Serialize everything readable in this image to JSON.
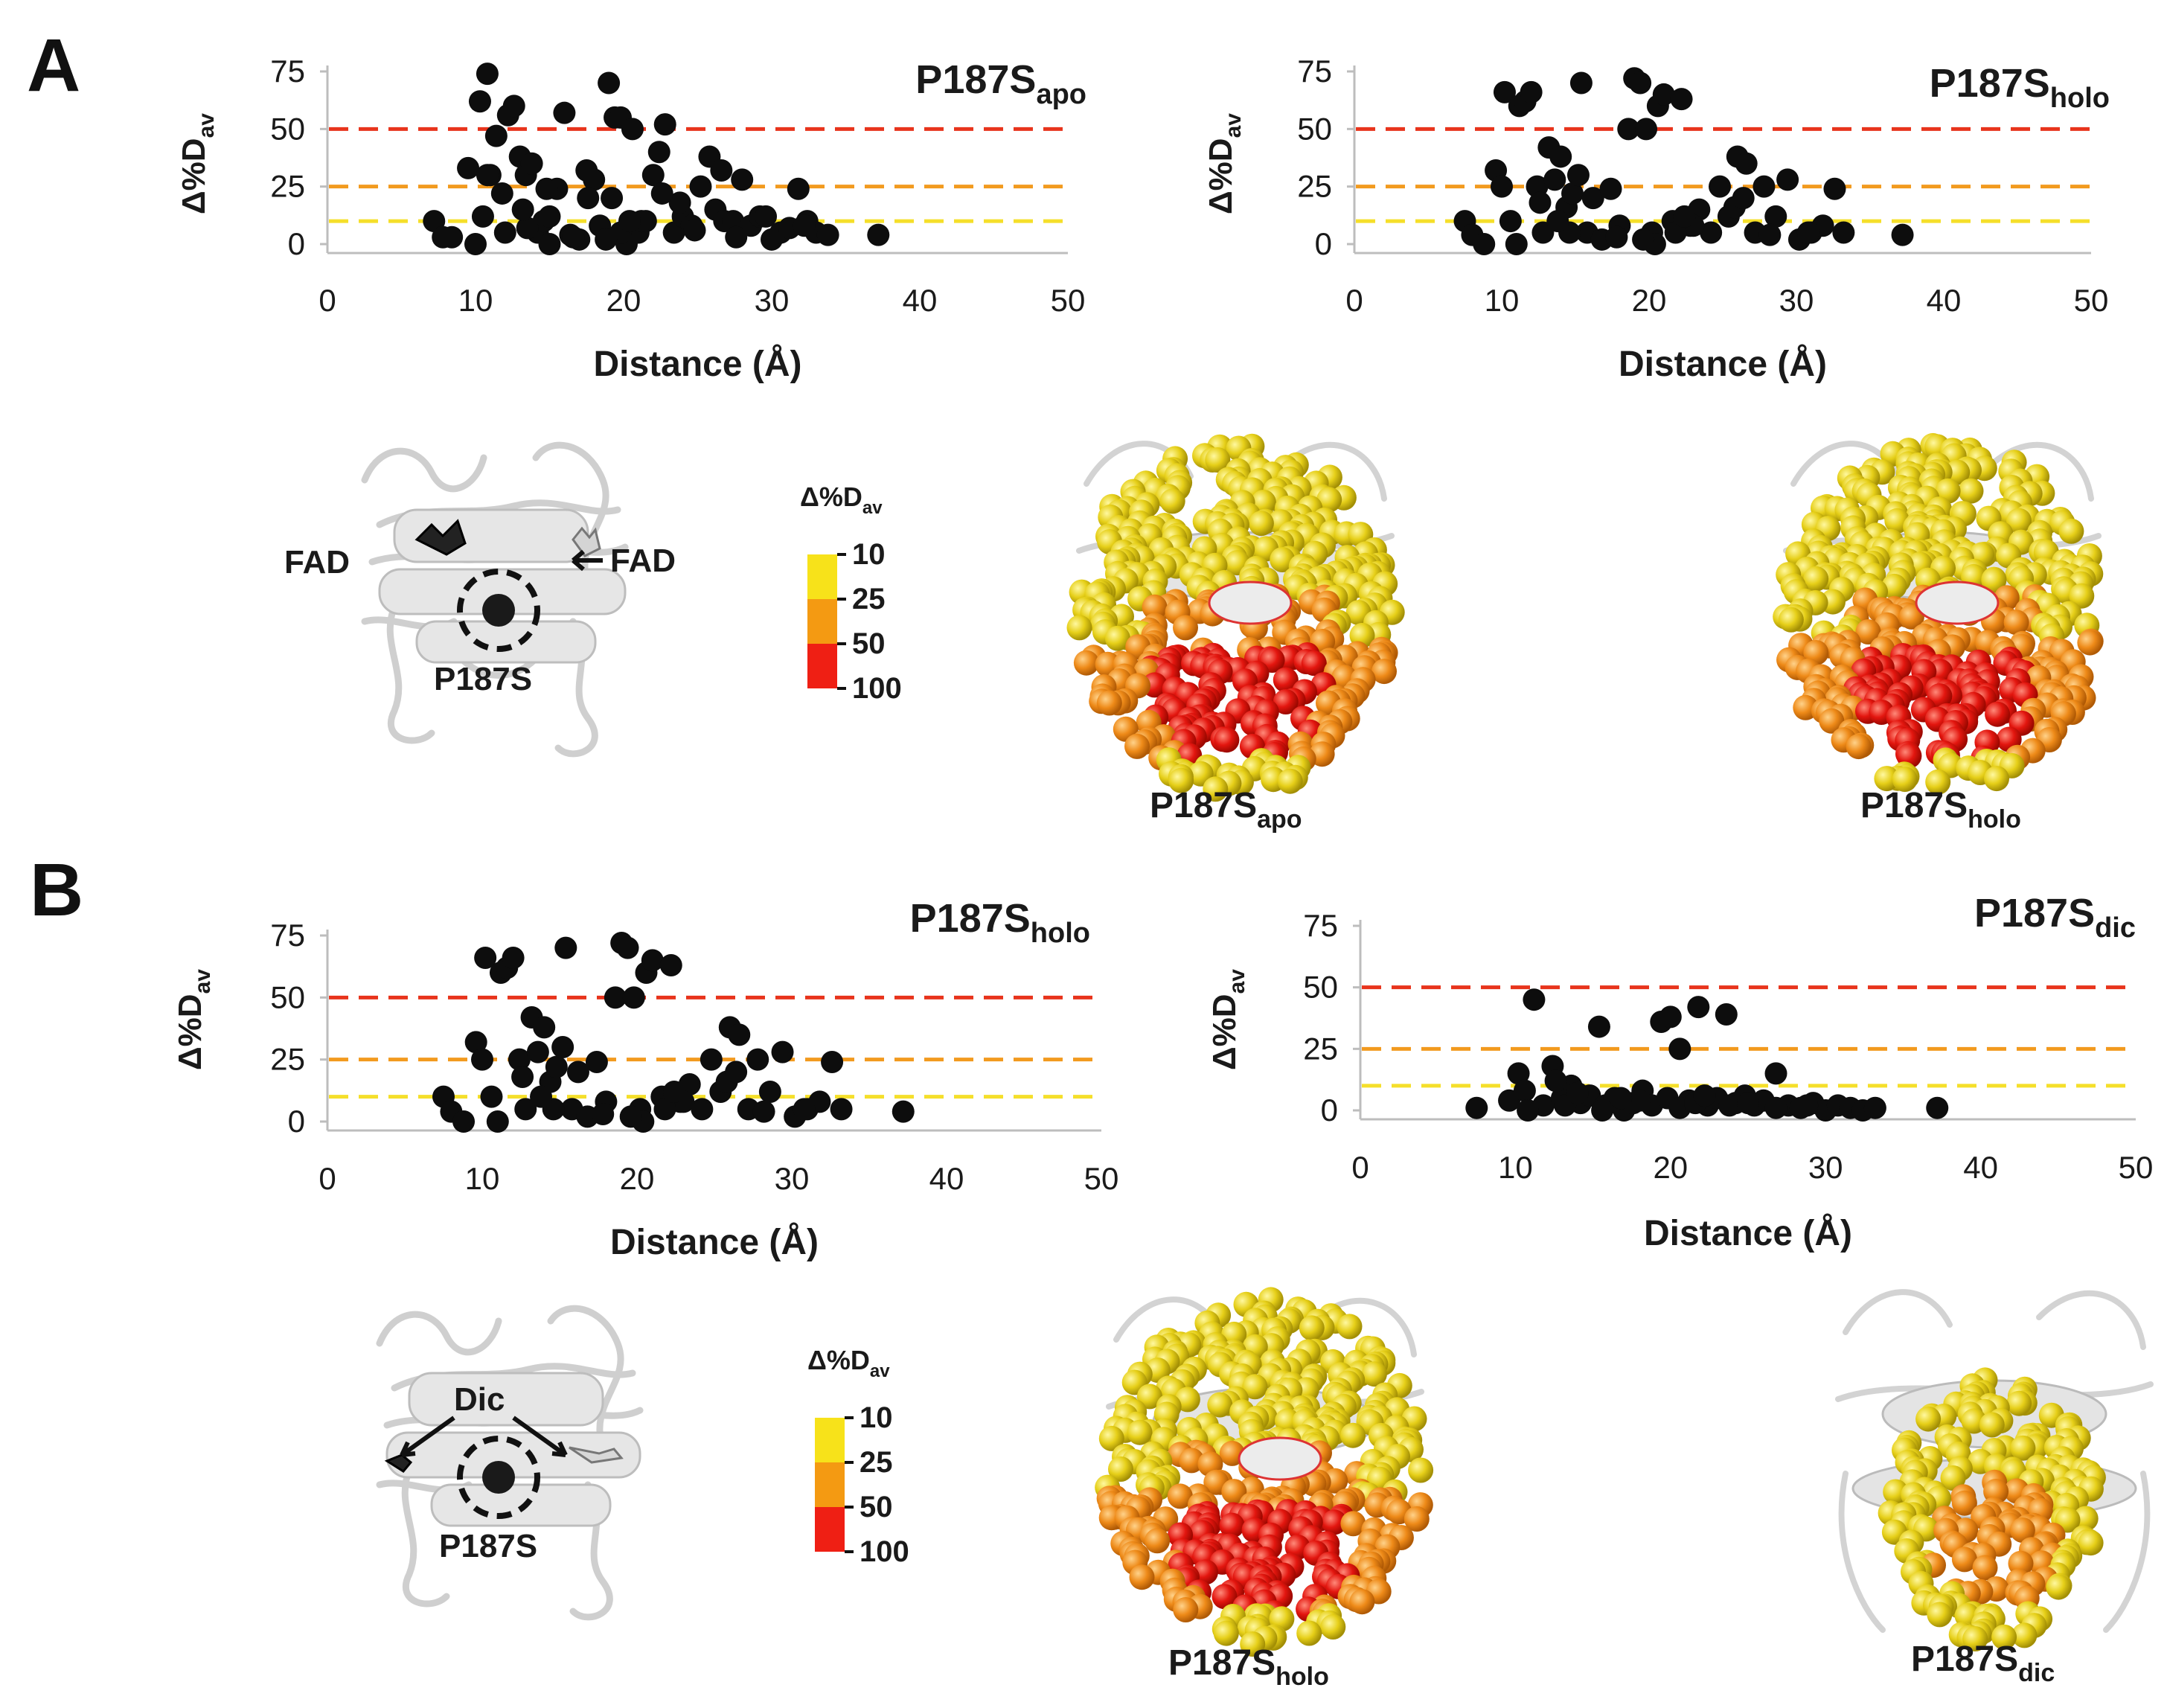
{
  "panels": [
    {
      "letter": "A"
    },
    {
      "letter": "B"
    }
  ],
  "chart_data": [
    {
      "id": "A1",
      "type": "scatter",
      "title_main": "P187S",
      "title_sub": "apo",
      "xlabel": "Distance (Å)",
      "ylabel_main": "Δ%D",
      "ylabel_sub": "av",
      "xlim": [
        0,
        50
      ],
      "ylim": [
        0,
        75
      ],
      "x_ticks": [
        0,
        10,
        20,
        30,
        40,
        50
      ],
      "y_ticks": [
        0,
        25,
        50,
        75
      ],
      "thresholds": [
        {
          "value": 50,
          "color": "#e8341c"
        },
        {
          "value": 25,
          "color": "#f29a1e"
        },
        {
          "value": 10,
          "color": "#f5df2a"
        }
      ],
      "x": [
        7.2,
        7.8,
        8.4,
        9.5,
        10.0,
        10.3,
        10.8,
        11.0,
        11.8,
        12.2,
        12.6,
        13.0,
        13.4,
        13.8,
        14.2,
        14.6,
        15.0,
        15.5,
        16.0,
        16.4,
        17.0,
        17.5,
        18.0,
        18.4,
        19.0,
        19.4,
        19.8,
        20.2,
        20.6,
        21.0,
        21.5,
        22.0,
        22.4,
        22.8,
        23.4,
        24.0,
        24.6,
        25.2,
        25.8,
        26.2,
        26.8,
        27.4,
        28.0,
        28.6,
        29.2,
        30.0,
        30.6,
        31.2,
        31.8,
        32.4,
        33.0,
        33.8,
        37.2,
        10.5,
        12.0,
        13.5,
        15.0,
        17.6,
        19.8,
        21.2,
        23.8,
        26.6,
        29.6,
        32.2,
        11.4,
        14.8,
        16.6,
        18.8,
        20.4,
        24.8,
        27.6,
        22.6,
        10.8,
        13.2,
        19.2
      ],
      "y": [
        10,
        3,
        3,
        33,
        0,
        62,
        74,
        30,
        22,
        56,
        60,
        38,
        30,
        35,
        5,
        10,
        12,
        24,
        57,
        4,
        2,
        32,
        28,
        8,
        70,
        55,
        55,
        0,
        50,
        5,
        10,
        30,
        40,
        52,
        5,
        12,
        8,
        25,
        38,
        15,
        10,
        10,
        28,
        8,
        12,
        2,
        5,
        7,
        24,
        10,
        5,
        4,
        4,
        12,
        5,
        7,
        0,
        20,
        5,
        10,
        18,
        32,
        12,
        8,
        47,
        24,
        3,
        2,
        10,
        6,
        3,
        22,
        30,
        15,
        20
      ]
    },
    {
      "id": "A2",
      "type": "scatter",
      "title_main": "P187S",
      "title_sub": "holo",
      "xlabel": "Distance (Å)",
      "ylabel_main": "Δ%D",
      "ylabel_sub": "av",
      "xlim": [
        0,
        50
      ],
      "ylim": [
        0,
        75
      ],
      "x_ticks": [
        0,
        10,
        20,
        30,
        40,
        50
      ],
      "y_ticks": [
        0,
        25,
        50,
        75
      ],
      "thresholds": [
        {
          "value": 50,
          "color": "#e8341c"
        },
        {
          "value": 25,
          "color": "#f29a1e"
        },
        {
          "value": 10,
          "color": "#f5df2a"
        }
      ],
      "x": [
        7.5,
        8.0,
        8.8,
        9.6,
        10.2,
        10.6,
        11.2,
        11.6,
        12.0,
        12.4,
        12.8,
        13.2,
        13.6,
        14.0,
        14.4,
        14.8,
        15.4,
        15.8,
        16.2,
        16.8,
        17.4,
        18.0,
        18.6,
        19.0,
        19.4,
        19.8,
        20.2,
        20.6,
        21.0,
        21.6,
        22.2,
        22.8,
        23.4,
        24.2,
        24.8,
        25.4,
        26.0,
        26.6,
        27.2,
        27.8,
        28.6,
        29.4,
        30.2,
        31.0,
        31.8,
        32.6,
        33.2,
        37.2,
        10.0,
        12.6,
        14.6,
        17.8,
        20.4,
        23.0,
        25.8,
        28.2,
        30.8,
        13.8,
        19.6,
        21.8,
        15.2,
        26.4,
        11.0,
        22.4
      ],
      "y": [
        10,
        4,
        0,
        32,
        66,
        10,
        60,
        62,
        66,
        25,
        5,
        42,
        28,
        38,
        16,
        22,
        70,
        5,
        20,
        2,
        24,
        8,
        50,
        72,
        70,
        50,
        5,
        60,
        65,
        10,
        63,
        8,
        15,
        5,
        25,
        12,
        38,
        35,
        5,
        25,
        12,
        28,
        2,
        5,
        8,
        24,
        5,
        4,
        25,
        18,
        5,
        3,
        0,
        8,
        16,
        4,
        5,
        10,
        2,
        5,
        30,
        20,
        0,
        12
      ]
    },
    {
      "id": "B1",
      "type": "scatter",
      "title_main": "P187S",
      "title_sub": "holo",
      "xlabel": "Distance (Å)",
      "ylabel_main": "Δ%D",
      "ylabel_sub": "av",
      "xlim": [
        0,
        50
      ],
      "ylim": [
        0,
        75
      ],
      "x_ticks": [
        0,
        10,
        20,
        30,
        40,
        50
      ],
      "y_ticks": [
        0,
        25,
        50,
        75
      ],
      "thresholds": [
        {
          "value": 50,
          "color": "#e8341c"
        },
        {
          "value": 25,
          "color": "#f29a1e"
        },
        {
          "value": 10,
          "color": "#f5df2a"
        }
      ],
      "x": [
        7.5,
        8.0,
        8.8,
        9.6,
        10.2,
        10.6,
        11.2,
        11.6,
        12.0,
        12.4,
        12.8,
        13.2,
        13.6,
        14.0,
        14.4,
        14.8,
        15.4,
        15.8,
        16.2,
        16.8,
        17.4,
        18.0,
        18.6,
        19.0,
        19.4,
        19.8,
        20.2,
        20.6,
        21.0,
        21.6,
        22.2,
        22.8,
        23.4,
        24.2,
        24.8,
        25.4,
        26.0,
        26.6,
        27.2,
        27.8,
        28.6,
        29.4,
        30.2,
        31.0,
        31.8,
        32.6,
        33.2,
        37.2,
        10.0,
        12.6,
        14.6,
        17.8,
        20.4,
        23.0,
        25.8,
        28.2,
        30.8,
        13.8,
        19.6,
        21.8,
        15.2,
        26.4,
        11.0,
        22.4
      ],
      "y": [
        10,
        4,
        0,
        32,
        66,
        10,
        60,
        62,
        66,
        25,
        5,
        42,
        28,
        38,
        16,
        22,
        70,
        5,
        20,
        2,
        24,
        8,
        50,
        72,
        70,
        50,
        5,
        60,
        65,
        10,
        63,
        8,
        15,
        5,
        25,
        12,
        38,
        35,
        5,
        25,
        12,
        28,
        2,
        5,
        8,
        24,
        5,
        4,
        25,
        18,
        5,
        3,
        0,
        8,
        16,
        4,
        5,
        10,
        2,
        5,
        30,
        20,
        0,
        12
      ]
    },
    {
      "id": "B2",
      "type": "scatter",
      "title_main": "P187S",
      "title_sub": "dic",
      "xlabel": "Distance (Å)",
      "ylabel_main": "Δ%D",
      "ylabel_sub": "av",
      "xlim": [
        0,
        50
      ],
      "ylim": [
        0,
        75
      ],
      "x_ticks": [
        0,
        10,
        20,
        30,
        40,
        50
      ],
      "y_ticks": [
        0,
        25,
        50,
        75
      ],
      "thresholds": [
        {
          "value": 50,
          "color": "#e8341c"
        },
        {
          "value": 25,
          "color": "#f29a1e"
        },
        {
          "value": 10,
          "color": "#f5df2a"
        }
      ],
      "x": [
        7.5,
        9.6,
        10.2,
        10.6,
        11.2,
        11.8,
        12.4,
        13.0,
        13.6,
        14.2,
        14.8,
        15.4,
        15.8,
        16.4,
        17.0,
        17.6,
        18.2,
        18.8,
        19.4,
        20.0,
        20.6,
        21.2,
        21.8,
        22.4,
        23.0,
        23.6,
        24.2,
        24.8,
        25.4,
        26.0,
        26.8,
        27.6,
        28.4,
        29.2,
        30.0,
        30.8,
        31.6,
        32.4,
        33.2,
        37.2,
        10.8,
        13.2,
        15.6,
        19.8,
        20.6,
        21.6,
        23.8,
        26.8,
        12.6,
        18.0,
        22.2,
        25.0,
        28.8,
        14.0,
        16.8
      ],
      "y": [
        1,
        4,
        15,
        8,
        45,
        2,
        18,
        5,
        10,
        3,
        6,
        34,
        2,
        5,
        0,
        3,
        8,
        2,
        36,
        38,
        25,
        4,
        42,
        2,
        5,
        39,
        3,
        6,
        2,
        4,
        15,
        2,
        1,
        3,
        0,
        2,
        1,
        0,
        1,
        1,
        0,
        2,
        0,
        5,
        1,
        3,
        2,
        1,
        12,
        4,
        6,
        3,
        2,
        7,
        5
      ]
    }
  ],
  "molecules": {
    "fad_left": "FAD",
    "fad_right": "FAD",
    "mutation_label": "P187S",
    "dic_label": "Dic"
  },
  "scale_bar": {
    "title_main": "Δ%D",
    "title_sub": "av",
    "labels": [
      "10",
      "25",
      "50",
      "100"
    ],
    "colors": [
      "#f7e21a",
      "#f49a12",
      "#ef1f14"
    ]
  },
  "structures": [
    {
      "main": "P187S",
      "sub": "apo"
    },
    {
      "main": "P187S",
      "sub": "holo"
    },
    {
      "main": "P187S",
      "sub": "holo"
    },
    {
      "main": "P187S",
      "sub": "dic"
    }
  ],
  "palette": {
    "red": "#e8341c",
    "orange": "#f29a1e",
    "yellow": "#f5df2a",
    "sphere_yellow": "#e8d21c",
    "sphere_orange": "#f08a1a",
    "sphere_red": "#e3160f",
    "ribbon": "#d8d8d8",
    "point": "#0d0d0d"
  }
}
